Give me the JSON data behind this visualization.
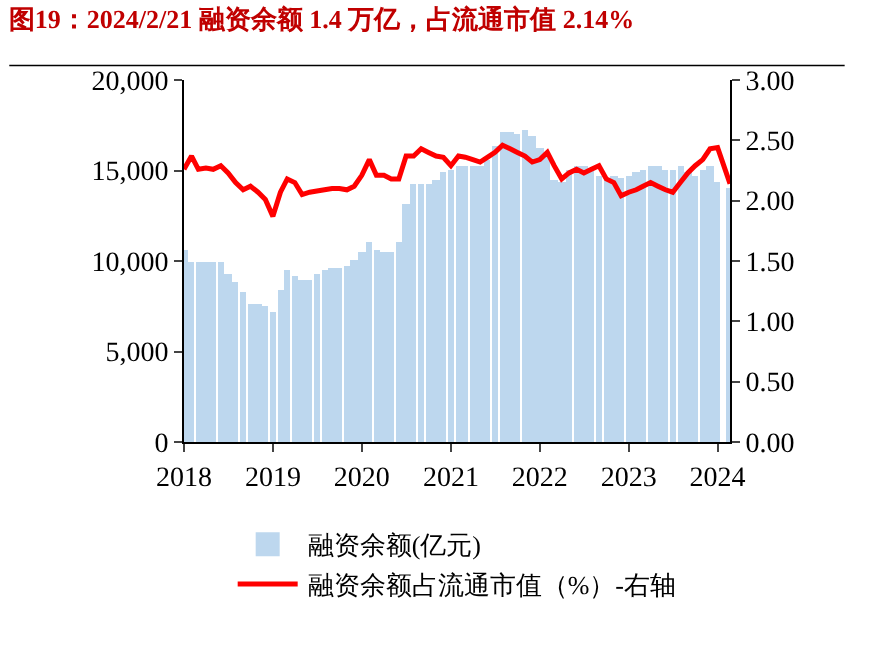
{
  "chart_data": {
    "type": "bar",
    "title": "图19：2024/2/21 融资余额 1.4 万亿，占流通市值 2.14%",
    "x": [
      "2018-01",
      "2018-02",
      "2018-03",
      "2018-04",
      "2018-05",
      "2018-06",
      "2018-07",
      "2018-08",
      "2018-09",
      "2018-10",
      "2018-11",
      "2018-12",
      "2019-01",
      "2019-02",
      "2019-03",
      "2019-04",
      "2019-05",
      "2019-06",
      "2019-07",
      "2019-08",
      "2019-09",
      "2019-10",
      "2019-11",
      "2019-12",
      "2020-01",
      "2020-02",
      "2020-03",
      "2020-04",
      "2020-05",
      "2020-06",
      "2020-07",
      "2020-08",
      "2020-09",
      "2020-10",
      "2020-11",
      "2020-12",
      "2021-01",
      "2021-02",
      "2021-03",
      "2021-04",
      "2021-05",
      "2021-06",
      "2021-07",
      "2021-08",
      "2021-09",
      "2021-10",
      "2021-11",
      "2021-12",
      "2022-01",
      "2022-02",
      "2022-03",
      "2022-04",
      "2022-05",
      "2022-06",
      "2022-07",
      "2022-08",
      "2022-09",
      "2022-10",
      "2022-11",
      "2022-12",
      "2023-01",
      "2023-02",
      "2023-03",
      "2023-04",
      "2023-05",
      "2023-06",
      "2023-07",
      "2023-08",
      "2023-09",
      "2023-10",
      "2023-11",
      "2023-12",
      "2024-01",
      "2024-02-21"
    ],
    "series": [
      {
        "name": "融资余额(亿元)",
        "color": "#bdd7ee",
        "values": [
          10600,
          9900,
          10000,
          10000,
          10000,
          10000,
          9300,
          8800,
          8300,
          7600,
          7600,
          7500,
          7200,
          8400,
          9500,
          9200,
          9000,
          8900,
          9300,
          9500,
          9600,
          9600,
          9700,
          10100,
          10500,
          11000,
          10600,
          10500,
          10500,
          11000,
          13200,
          14200,
          14200,
          14200,
          14500,
          14900,
          15000,
          15200,
          15200,
          15200,
          15300,
          15600,
          16400,
          17100,
          17100,
          17000,
          17200,
          16900,
          16200,
          15900,
          14500,
          14400,
          15000,
          15200,
          15200,
          15000,
          14700,
          14500,
          14700,
          14600,
          14700,
          14900,
          15000,
          15200,
          15200,
          15000,
          15000,
          15200,
          14900,
          14700,
          15000,
          15200,
          14400,
          14000
        ]
      },
      {
        "name": "融资余额占流通市值（%）-右轴",
        "type": "line",
        "axis": "y2",
        "color": "#ff0000",
        "values": [
          2.26,
          2.37,
          2.26,
          2.27,
          2.26,
          2.29,
          2.23,
          2.15,
          2.09,
          2.12,
          2.07,
          2.01,
          1.87,
          2.07,
          2.18,
          2.15,
          2.05,
          2.07,
          2.08,
          2.09,
          2.1,
          2.1,
          2.09,
          2.12,
          2.21,
          2.34,
          2.21,
          2.21,
          2.18,
          2.18,
          2.37,
          2.37,
          2.43,
          2.4,
          2.37,
          2.36,
          2.29,
          2.37,
          2.36,
          2.34,
          2.32,
          2.36,
          2.4,
          2.46,
          2.43,
          2.4,
          2.37,
          2.32,
          2.34,
          2.4,
          2.29,
          2.18,
          2.23,
          2.26,
          2.23,
          2.26,
          2.29,
          2.18,
          2.15,
          2.04,
          2.07,
          2.09,
          2.12,
          2.15,
          2.12,
          2.09,
          2.07,
          2.15,
          2.23,
          2.29,
          2.34,
          2.43,
          2.44,
          2.14
        ]
      }
    ],
    "xlim": [
      "2018-01-01",
      "2024-02-21"
    ],
    "xticks": [
      "2018",
      "2019",
      "2020",
      "2021",
      "2022",
      "2023",
      "2024"
    ],
    "ylim": [
      0,
      20000
    ],
    "yticks": [
      {
        "value": 0,
        "label": "0"
      },
      {
        "value": 5000,
        "label": "5,000"
      },
      {
        "value": 10000,
        "label": "10,000"
      },
      {
        "value": 15000,
        "label": "15,000"
      },
      {
        "value": 20000,
        "label": "20,000"
      }
    ],
    "y2lim": [
      0,
      3
    ],
    "y2ticks": [
      {
        "value": 0,
        "label": "0.00"
      },
      {
        "value": 0.5,
        "label": "0.50"
      },
      {
        "value": 1,
        "label": "1.00"
      },
      {
        "value": 1.5,
        "label": "1.50"
      },
      {
        "value": 2,
        "label": "2.00"
      },
      {
        "value": 2.5,
        "label": "2.50"
      },
      {
        "value": 3,
        "label": "3.00"
      }
    ],
    "legend": "bottom",
    "marker": "none",
    "line_style": "solid"
  }
}
